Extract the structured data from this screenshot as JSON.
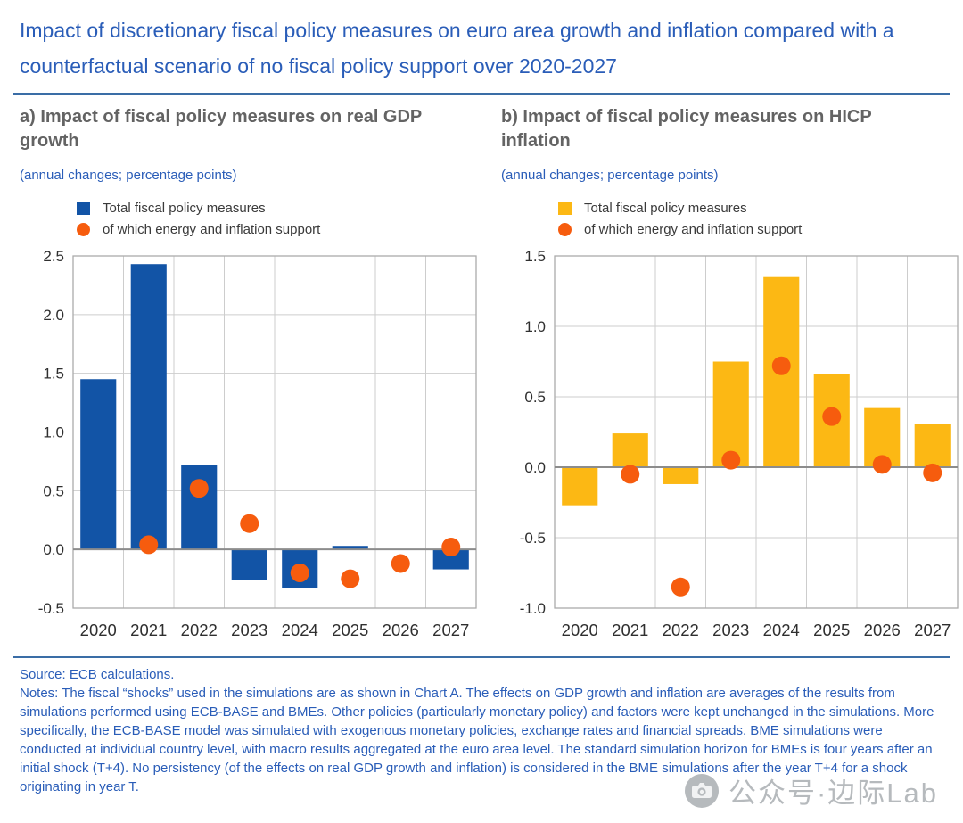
{
  "header": {
    "title": "Impact of discretionary fiscal policy measures on euro area growth and inflation compared with a counterfactual scenario of no fiscal policy support over 2020-2027"
  },
  "theme": {
    "title_blue": "#2a5db8",
    "heading_gray": "#636363",
    "rule_blue": "#3a6da6",
    "grid_gray": "#cdcdcd",
    "zero_line_gray": "#8c8c8c",
    "axis_label_gray": "#333333"
  },
  "chart_data": [
    {
      "type": "bar",
      "title": "a) Impact of fiscal policy measures on real GDP growth",
      "subtitle": "(annual changes; percentage points)",
      "categories": [
        "2020",
        "2021",
        "2022",
        "2023",
        "2024",
        "2025",
        "2026",
        "2027"
      ],
      "series": [
        {
          "name": "Total fiscal policy measures",
          "type": "bar",
          "color": "#1254a6",
          "values": [
            1.45,
            2.43,
            0.72,
            -0.26,
            -0.33,
            0.03,
            0.0,
            -0.17
          ]
        },
        {
          "name": "of which energy and inflation support",
          "type": "scatter",
          "color": "#f65c0e",
          "values": [
            null,
            0.04,
            0.52,
            0.22,
            -0.2,
            -0.25,
            -0.12,
            0.02
          ]
        }
      ],
      "ylim": [
        -0.5,
        2.5
      ],
      "ytick_step": 0.5,
      "grid": true,
      "legend_position": "top"
    },
    {
      "type": "bar",
      "title": "b) Impact of fiscal policy measures on HICP inflation",
      "subtitle": "(annual changes; percentage points)",
      "categories": [
        "2020",
        "2021",
        "2022",
        "2023",
        "2024",
        "2025",
        "2026",
        "2027"
      ],
      "series": [
        {
          "name": "Total fiscal policy measures",
          "type": "bar",
          "color": "#fcb814",
          "values": [
            -0.27,
            0.24,
            -0.12,
            0.75,
            1.35,
            0.66,
            0.42,
            0.31
          ]
        },
        {
          "name": "of which energy and inflation support",
          "type": "scatter",
          "color": "#f65c0e",
          "values": [
            null,
            -0.05,
            -0.85,
            0.05,
            0.72,
            0.36,
            0.02,
            -0.04
          ]
        }
      ],
      "ylim": [
        -1.0,
        1.5
      ],
      "ytick_step": 0.5,
      "grid": true,
      "legend_position": "top"
    }
  ],
  "footer": {
    "source": "Source: ECB calculations.",
    "notes": "Notes: The fiscal “shocks” used in the simulations are as shown in Chart A. The effects on GDP growth and inflation are averages of the results from simulations performed using ECB-BASE and BMEs. Other policies (particularly monetary policy) and factors were kept unchanged in the simulations. More specifically, the ECB-BASE model was simulated with exogenous monetary policies, exchange rates and financial spreads. BME simulations were conducted at individual country level, with macro results aggregated at the euro area level. The standard simulation horizon for BMEs is four years after an initial shock (T+4). No persistency (of the effects on real GDP growth and inflation) is considered in the BME simulations after the year T+4 for a shock originating in year T."
  },
  "watermark": {
    "icon": "camera-icon",
    "text": "公众号·边际Lab"
  }
}
